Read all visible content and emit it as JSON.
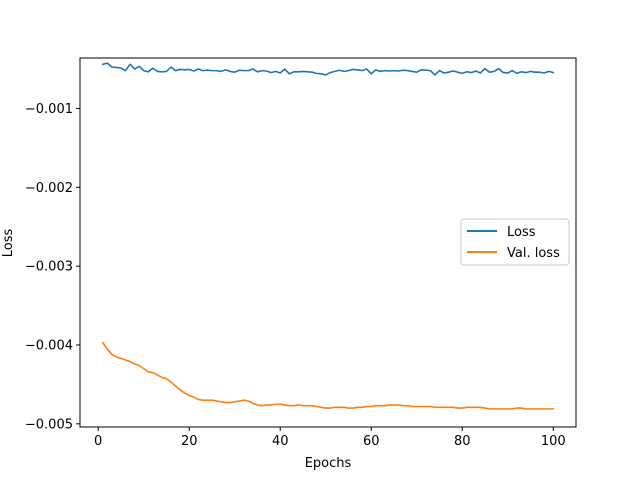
{
  "chart_data": {
    "type": "line",
    "title": "",
    "xlabel": "Epochs",
    "ylabel": "Loss",
    "xlim": [
      -4,
      105
    ],
    "ylim": [
      -0.00504,
      -0.00036
    ],
    "x_ticks": [
      0,
      20,
      40,
      60,
      80,
      100
    ],
    "y_ticks": [
      -0.001,
      -0.002,
      -0.003,
      -0.004,
      -0.005
    ],
    "y_tick_labels": [
      "−0.001",
      "−0.002",
      "−0.003",
      "−0.004",
      "−0.005"
    ],
    "grid": false,
    "legend_position": "center-right",
    "colors": {
      "Loss": "#1f77b4",
      "Val. loss": "#ff7f0e"
    },
    "x": [
      1,
      2,
      3,
      4,
      5,
      6,
      7,
      8,
      9,
      10,
      11,
      12,
      13,
      14,
      15,
      16,
      17,
      18,
      19,
      20,
      21,
      22,
      23,
      24,
      25,
      26,
      27,
      28,
      29,
      30,
      31,
      32,
      33,
      34,
      35,
      36,
      37,
      38,
      39,
      40,
      41,
      42,
      43,
      44,
      45,
      46,
      47,
      48,
      49,
      50,
      51,
      52,
      53,
      54,
      55,
      56,
      57,
      58,
      59,
      60,
      61,
      62,
      63,
      64,
      65,
      66,
      67,
      68,
      69,
      70,
      71,
      72,
      73,
      74,
      75,
      76,
      77,
      78,
      79,
      80,
      81,
      82,
      83,
      84,
      85,
      86,
      87,
      88,
      89,
      90,
      91,
      92,
      93,
      94,
      95,
      96,
      97,
      98,
      99,
      100
    ],
    "series": [
      {
        "name": "Loss",
        "values": [
          -0.00044,
          -0.000425,
          -0.000475,
          -0.00048,
          -0.000487,
          -0.00052,
          -0.00044,
          -0.0005,
          -0.000465,
          -0.00052,
          -0.000535,
          -0.00049,
          -0.00053,
          -0.000535,
          -0.00053,
          -0.000475,
          -0.00052,
          -0.000505,
          -0.00051,
          -0.000505,
          -0.000525,
          -0.0005,
          -0.00052,
          -0.000515,
          -0.00052,
          -0.00052,
          -0.00053,
          -0.00051,
          -0.00053,
          -0.00054,
          -0.000515,
          -0.00052,
          -0.00052,
          -0.0005,
          -0.000535,
          -0.00052,
          -0.000525,
          -0.000545,
          -0.00053,
          -0.00055,
          -0.0005,
          -0.00056,
          -0.000535,
          -0.000535,
          -0.00053,
          -0.000535,
          -0.00054,
          -0.000555,
          -0.00056,
          -0.000575,
          -0.000545,
          -0.00053,
          -0.000515,
          -0.00053,
          -0.00052,
          -0.000505,
          -0.00051,
          -0.00052,
          -0.0005,
          -0.00056,
          -0.00051,
          -0.00053,
          -0.00052,
          -0.000525,
          -0.00052,
          -0.000525,
          -0.000515,
          -0.00052,
          -0.00053,
          -0.00054,
          -0.00051,
          -0.000515,
          -0.00052,
          -0.000575,
          -0.00052,
          -0.00055,
          -0.00054,
          -0.000525,
          -0.00054,
          -0.000555,
          -0.000535,
          -0.000545,
          -0.000525,
          -0.00055,
          -0.000495,
          -0.00054,
          -0.00053,
          -0.000495,
          -0.000545,
          -0.00055,
          -0.00052,
          -0.000555,
          -0.000535,
          -0.000545,
          -0.00053,
          -0.00054,
          -0.00054,
          -0.00055,
          -0.00053,
          -0.000545
        ]
      },
      {
        "name": "Val. loss",
        "values": [
          -0.00397,
          -0.00405,
          -0.00412,
          -0.00415,
          -0.00417,
          -0.00419,
          -0.00421,
          -0.00424,
          -0.00426,
          -0.0043,
          -0.00434,
          -0.00435,
          -0.00438,
          -0.00441,
          -0.00443,
          -0.00447,
          -0.00452,
          -0.00457,
          -0.00461,
          -0.00464,
          -0.00466,
          -0.00469,
          -0.0047,
          -0.0047,
          -0.0047,
          -0.00471,
          -0.00472,
          -0.00473,
          -0.00473,
          -0.00472,
          -0.00471,
          -0.0047,
          -0.00471,
          -0.00474,
          -0.00476,
          -0.00477,
          -0.00476,
          -0.00476,
          -0.00475,
          -0.00475,
          -0.00476,
          -0.00477,
          -0.00477,
          -0.00476,
          -0.00477,
          -0.00477,
          -0.00477,
          -0.00478,
          -0.00479,
          -0.0048,
          -0.0048,
          -0.00479,
          -0.00479,
          -0.00479,
          -0.0048,
          -0.0048,
          -0.00479,
          -0.00479,
          -0.00478,
          -0.00478,
          -0.00477,
          -0.00477,
          -0.00477,
          -0.00476,
          -0.00476,
          -0.00476,
          -0.00477,
          -0.00477,
          -0.00478,
          -0.00478,
          -0.00478,
          -0.00478,
          -0.00478,
          -0.00479,
          -0.00479,
          -0.00479,
          -0.00479,
          -0.00479,
          -0.0048,
          -0.0048,
          -0.00479,
          -0.00479,
          -0.00479,
          -0.00479,
          -0.0048,
          -0.00481,
          -0.00481,
          -0.00481,
          -0.00481,
          -0.00481,
          -0.00481,
          -0.0048,
          -0.0048,
          -0.00481,
          -0.00481,
          -0.00481,
          -0.00481,
          -0.00481,
          -0.00481,
          -0.00481
        ]
      }
    ]
  }
}
